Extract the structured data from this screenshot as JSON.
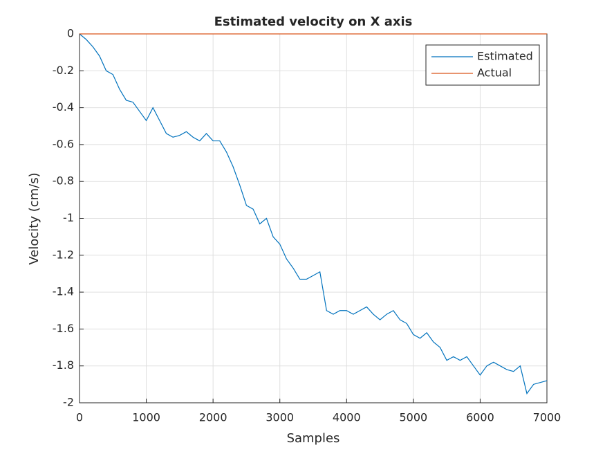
{
  "chart_data": {
    "type": "line",
    "title": "Estimated velocity on X axis",
    "xlabel": "Samples",
    "ylabel": "Velocity (cm/s)",
    "xlim": [
      0,
      7000
    ],
    "ylim": [
      -2,
      0
    ],
    "xticks": [
      0,
      1000,
      2000,
      3000,
      4000,
      5000,
      6000,
      7000
    ],
    "yticks": [
      -2,
      -1.8,
      -1.6,
      -1.4,
      -1.2,
      -1,
      -0.8,
      -0.6,
      -0.4,
      -0.2,
      0
    ],
    "grid": true,
    "legend": "top-right",
    "series": [
      {
        "name": "Estimated",
        "color": "#0072bd",
        "x": [
          0,
          100,
          200,
          300,
          400,
          500,
          600,
          700,
          800,
          900,
          1000,
          1100,
          1200,
          1300,
          1400,
          1500,
          1600,
          1700,
          1800,
          1900,
          2000,
          2100,
          2200,
          2300,
          2400,
          2500,
          2600,
          2700,
          2800,
          2900,
          3000,
          3100,
          3200,
          3300,
          3400,
          3500,
          3600,
          3700,
          3800,
          3900,
          4000,
          4100,
          4200,
          4300,
          4400,
          4500,
          4600,
          4700,
          4800,
          4900,
          5000,
          5100,
          5200,
          5300,
          5400,
          5500,
          5600,
          5700,
          5800,
          5900,
          6000,
          6100,
          6200,
          6300,
          6400,
          6500,
          6600,
          6700,
          6800,
          6900,
          7000
        ],
        "values": [
          0,
          -0.03,
          -0.07,
          -0.12,
          -0.2,
          -0.22,
          -0.3,
          -0.36,
          -0.37,
          -0.42,
          -0.47,
          -0.4,
          -0.47,
          -0.54,
          -0.56,
          -0.55,
          -0.53,
          -0.56,
          -0.58,
          -0.54,
          -0.58,
          -0.58,
          -0.64,
          -0.72,
          -0.82,
          -0.93,
          -0.95,
          -1.03,
          -1.0,
          -1.1,
          -1.14,
          -1.22,
          -1.27,
          -1.33,
          -1.33,
          -1.31,
          -1.29,
          -1.5,
          -1.52,
          -1.5,
          -1.5,
          -1.52,
          -1.5,
          -1.48,
          -1.52,
          -1.55,
          -1.52,
          -1.5,
          -1.55,
          -1.57,
          -1.63,
          -1.65,
          -1.62,
          -1.67,
          -1.7,
          -1.77,
          -1.75,
          -1.77,
          -1.75,
          -1.8,
          -1.85,
          -1.8,
          -1.78,
          -1.8,
          -1.82,
          -1.83,
          -1.8,
          -1.95,
          -1.9,
          -1.89,
          -1.88
        ]
      },
      {
        "name": "Actual",
        "color": "#d95319",
        "x": [
          0,
          7000
        ],
        "values": [
          0,
          0
        ]
      }
    ]
  }
}
